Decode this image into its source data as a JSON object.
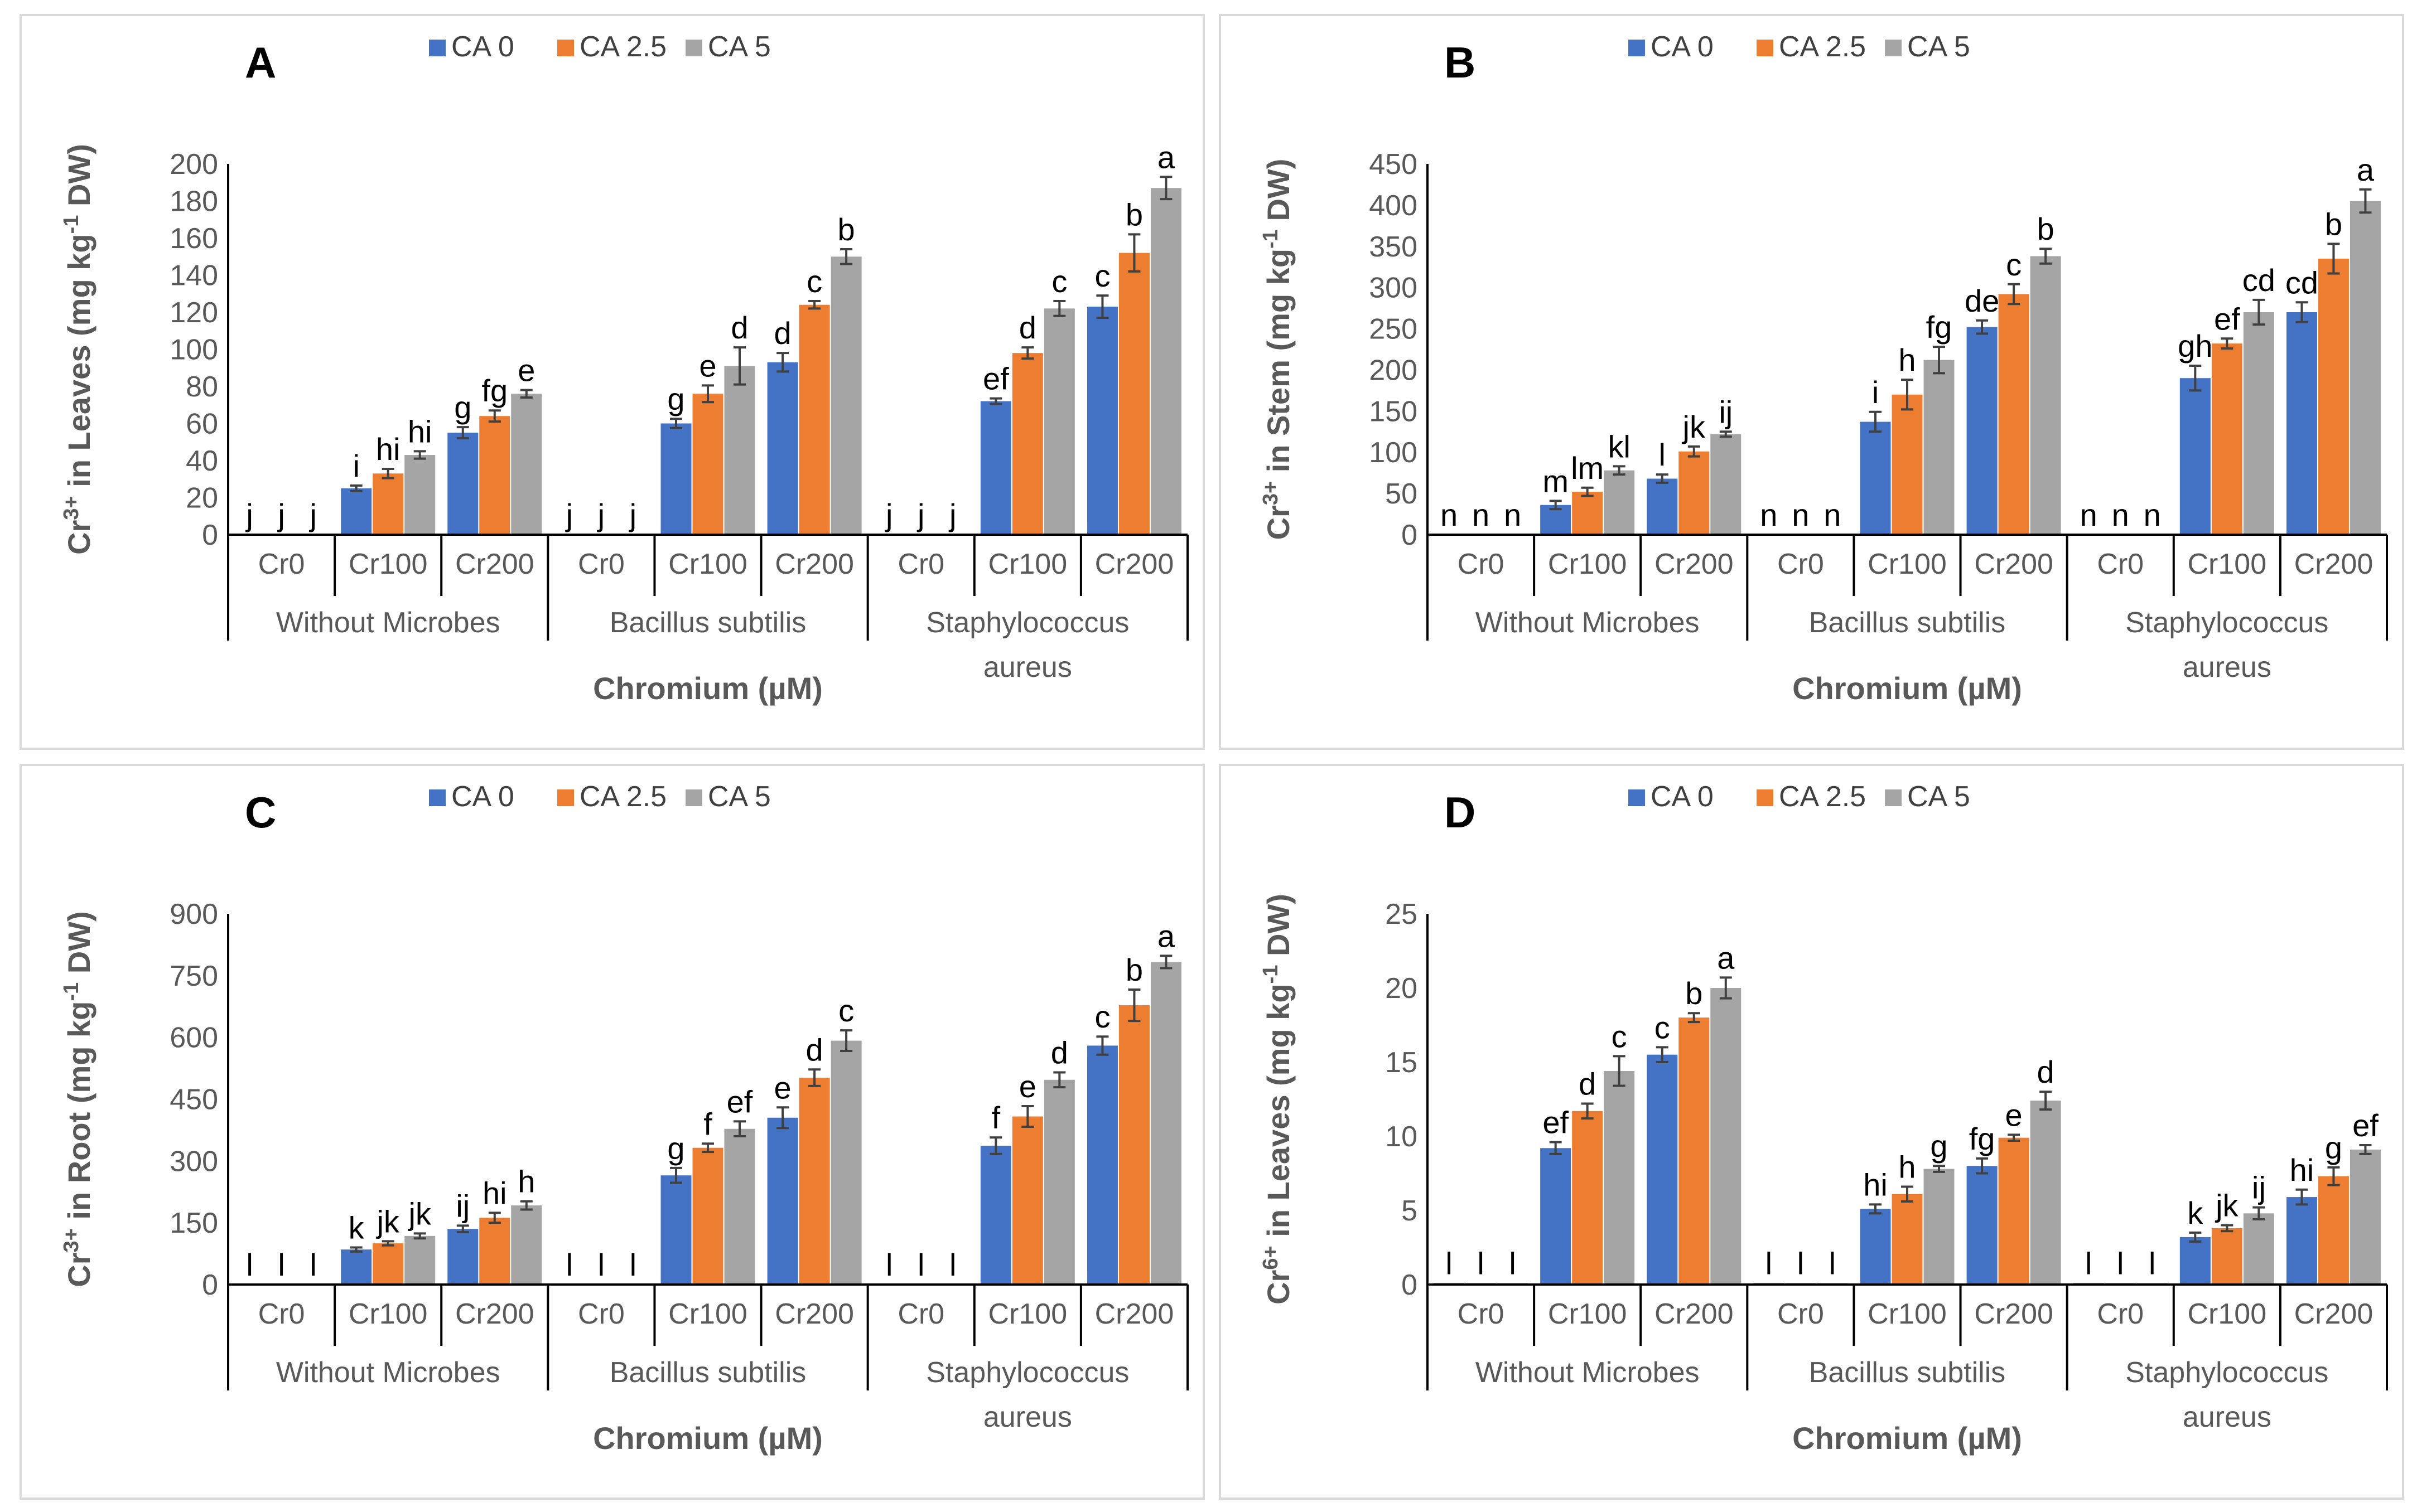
{
  "legend": [
    "CA 0",
    "CA 2.5",
    "CA 5"
  ],
  "colors": {
    "series": [
      "#4472C4",
      "#ED7D31",
      "#A5A5A5"
    ],
    "axis": "#000000",
    "text": "#595959"
  },
  "x_categories": {
    "levels": [
      "Cr0",
      "Cr100",
      "Cr200"
    ],
    "groups": [
      "Without Microbes",
      "Bacillus subtilis",
      "Staphylococcus aureus"
    ]
  },
  "chart_data": [
    {
      "type": "bar",
      "panel": "A",
      "title": "",
      "xlabel": "Chromium (µM)",
      "ylabel_parts": {
        "pre": "Cr",
        "sup": "3+",
        "mid": " in Leaves (mg kg",
        "sup2": "-1",
        "post": " DW)"
      },
      "ylim": [
        0,
        200
      ],
      "yticks": [
        0,
        20,
        40,
        60,
        80,
        100,
        120,
        140,
        160,
        180,
        200
      ],
      "series": [
        {
          "name": "CA 0",
          "values": [
            0,
            25,
            55,
            0,
            60,
            93,
            0,
            72,
            123
          ],
          "errors": [
            0,
            1.5,
            3,
            0,
            2.5,
            5,
            0,
            1.5,
            6
          ]
        },
        {
          "name": "CA 2.5",
          "values": [
            0,
            33,
            64,
            0,
            76,
            124,
            0,
            98,
            152
          ],
          "errors": [
            0,
            2.5,
            3,
            0,
            4.5,
            2,
            0,
            3,
            10
          ]
        },
        {
          "name": "CA 5",
          "values": [
            0,
            43,
            76,
            0,
            91,
            150,
            0,
            122,
            187
          ],
          "errors": [
            0,
            2,
            2,
            0,
            10,
            4,
            0,
            4,
            6
          ]
        }
      ],
      "annotations": [
        [
          "j",
          "j",
          "j"
        ],
        [
          "i",
          "hi",
          "hi"
        ],
        [
          "g",
          "fg",
          "e"
        ],
        [
          "j",
          "j",
          "j"
        ],
        [
          "g",
          "e",
          "d"
        ],
        [
          "d",
          "c",
          "b"
        ],
        [
          "j",
          "j",
          "j"
        ],
        [
          "ef",
          "d",
          "c"
        ],
        [
          "c",
          "b",
          "a"
        ]
      ]
    },
    {
      "type": "bar",
      "panel": "B",
      "title": "",
      "xlabel": "Chromium (µM)",
      "ylabel_parts": {
        "pre": "Cr",
        "sup": "3+",
        "mid": " in Stem (mg kg",
        "sup2": "-1",
        "post": " DW)"
      },
      "ylim": [
        0,
        450
      ],
      "yticks": [
        0,
        50,
        100,
        150,
        200,
        250,
        300,
        350,
        400,
        450
      ],
      "series": [
        {
          "name": "CA 0",
          "values": [
            0,
            36,
            68,
            0,
            137,
            252,
            0,
            190,
            270
          ],
          "errors": [
            0,
            5,
            5,
            0,
            12,
            8,
            0,
            15,
            12
          ]
        },
        {
          "name": "CA 2.5",
          "values": [
            0,
            52,
            101,
            0,
            170,
            292,
            0,
            232,
            335
          ],
          "errors": [
            0,
            5,
            6,
            0,
            18,
            12,
            0,
            6,
            18
          ]
        },
        {
          "name": "CA 5",
          "values": [
            0,
            78,
            122,
            0,
            212,
            338,
            0,
            270,
            405
          ],
          "errors": [
            0,
            5,
            3,
            0,
            16,
            9,
            0,
            15,
            14
          ]
        }
      ],
      "annotations": [
        [
          "n",
          "n",
          "n"
        ],
        [
          "m",
          "lm",
          "kl"
        ],
        [
          "l",
          "jk",
          "ij"
        ],
        [
          "n",
          "n",
          "n"
        ],
        [
          "i",
          "h",
          "fg"
        ],
        [
          "de",
          "c",
          "b"
        ],
        [
          "n",
          "n",
          "n"
        ],
        [
          "gh",
          "ef",
          "cd"
        ],
        [
          "cd",
          "b",
          "a"
        ]
      ]
    },
    {
      "type": "bar",
      "panel": "C",
      "title": "",
      "xlabel": "Chromium (µM)",
      "ylabel_parts": {
        "pre": "Cr",
        "sup": "3+",
        "mid": " in Root (mg kg",
        "sup2": "-1",
        "post": " DW)"
      },
      "ylim": [
        0,
        900
      ],
      "yticks": [
        0,
        150,
        300,
        450,
        600,
        750,
        900
      ],
      "series": [
        {
          "name": "CA 0",
          "values": [
            0,
            85,
            135,
            0,
            265,
            405,
            0,
            337,
            580
          ],
          "errors": [
            0,
            5,
            8,
            0,
            18,
            25,
            0,
            20,
            22
          ]
        },
        {
          "name": "CA 2.5",
          "values": [
            0,
            100,
            162,
            0,
            332,
            502,
            0,
            408,
            678
          ],
          "errors": [
            0,
            5,
            12,
            0,
            10,
            20,
            0,
            25,
            38
          ]
        },
        {
          "name": "CA 5",
          "values": [
            0,
            118,
            192,
            0,
            378,
            592,
            0,
            497,
            783
          ],
          "errors": [
            0,
            6,
            10,
            0,
            18,
            25,
            0,
            18,
            15
          ]
        }
      ],
      "annotations": [
        [
          "l",
          "l",
          "l"
        ],
        [
          "k",
          "jk",
          "jk"
        ],
        [
          "ij",
          "hi",
          "h"
        ],
        [
          "l",
          "l",
          "l"
        ],
        [
          "g",
          "f",
          "ef"
        ],
        [
          "e",
          "d",
          "c"
        ],
        [
          "l",
          "l",
          "l"
        ],
        [
          "f",
          "e",
          "d"
        ],
        [
          "c",
          "b",
          "a"
        ]
      ]
    },
    {
      "type": "bar",
      "panel": "D",
      "title": "",
      "xlabel": "Chromium (µM)",
      "ylabel_parts": {
        "pre": "Cr",
        "sup": "6+",
        "mid": " in Leaves (mg kg",
        "sup2": "-1",
        "post": " DW)"
      },
      "ylim": [
        0,
        25
      ],
      "yticks": [
        0,
        5,
        10,
        15,
        20,
        25
      ],
      "series": [
        {
          "name": "CA 0",
          "values": [
            0.1,
            9.2,
            15.5,
            0.1,
            5.1,
            8.0,
            0.1,
            3.2,
            5.9
          ],
          "errors": [
            0,
            0.4,
            0.5,
            0,
            0.3,
            0.5,
            0,
            0.3,
            0.5
          ]
        },
        {
          "name": "CA 2.5",
          "values": [
            0.1,
            11.7,
            18.0,
            0.1,
            6.1,
            9.9,
            0.1,
            3.8,
            7.3
          ],
          "errors": [
            0,
            0.5,
            0.3,
            0,
            0.5,
            0.2,
            0,
            0.2,
            0.6
          ]
        },
        {
          "name": "CA 5",
          "values": [
            0.1,
            14.4,
            20.0,
            0.1,
            7.8,
            12.4,
            0.1,
            4.8,
            9.1
          ],
          "errors": [
            0,
            1.0,
            0.7,
            0,
            0.2,
            0.6,
            0,
            0.4,
            0.3
          ]
        }
      ],
      "annotations": [
        [
          "l",
          "l",
          "l"
        ],
        [
          "ef",
          "d",
          "c"
        ],
        [
          "c",
          "b",
          "a"
        ],
        [
          "l",
          "l",
          "l"
        ],
        [
          "hi",
          "h",
          "g"
        ],
        [
          "fg",
          "e",
          "d"
        ],
        [
          "l",
          "l",
          "l"
        ],
        [
          "k",
          "jk",
          "ij"
        ],
        [
          "hi",
          "g",
          "ef"
        ]
      ]
    }
  ]
}
